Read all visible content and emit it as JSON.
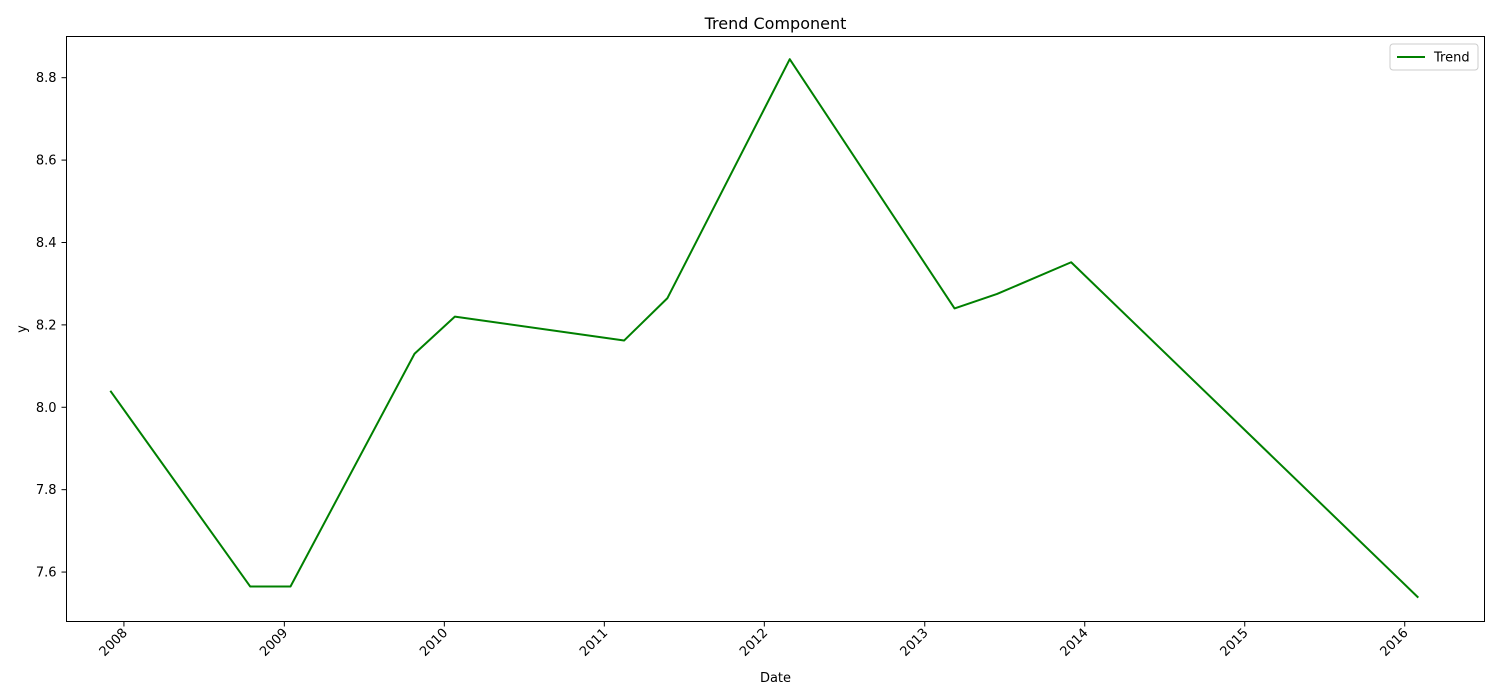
{
  "chart_data": {
    "type": "line",
    "title": "Trend Component",
    "xlabel": "Date",
    "ylabel": "y",
    "xlim": [
      "2007-08-23",
      "2016-07-01"
    ],
    "ylim": [
      7.48,
      8.9
    ],
    "x_ticks": [
      "2008",
      "2009",
      "2010",
      "2011",
      "2012",
      "2013",
      "2014",
      "2015",
      "2016"
    ],
    "y_ticks": [
      "7.6",
      "7.8",
      "8.0",
      "8.2",
      "8.4",
      "8.6",
      "8.8"
    ],
    "grid": false,
    "legend": {
      "position": "top-right",
      "entries": [
        "Trend"
      ]
    },
    "series": [
      {
        "name": "Trend",
        "color": "#008000",
        "points": [
          {
            "x": "2007-12-01",
            "y": 8.04
          },
          {
            "x": "2008-10-15",
            "y": 7.565
          },
          {
            "x": "2009-01-15",
            "y": 7.565
          },
          {
            "x": "2009-10-25",
            "y": 8.13
          },
          {
            "x": "2010-01-25",
            "y": 8.22
          },
          {
            "x": "2011-02-15",
            "y": 8.162
          },
          {
            "x": "2011-05-25",
            "y": 8.265
          },
          {
            "x": "2012-02-28",
            "y": 8.845
          },
          {
            "x": "2013-03-10",
            "y": 8.24
          },
          {
            "x": "2013-06-15",
            "y": 8.275
          },
          {
            "x": "2013-12-01",
            "y": 8.352
          },
          {
            "x": "2016-02-01",
            "y": 7.538
          }
        ]
      }
    ]
  }
}
